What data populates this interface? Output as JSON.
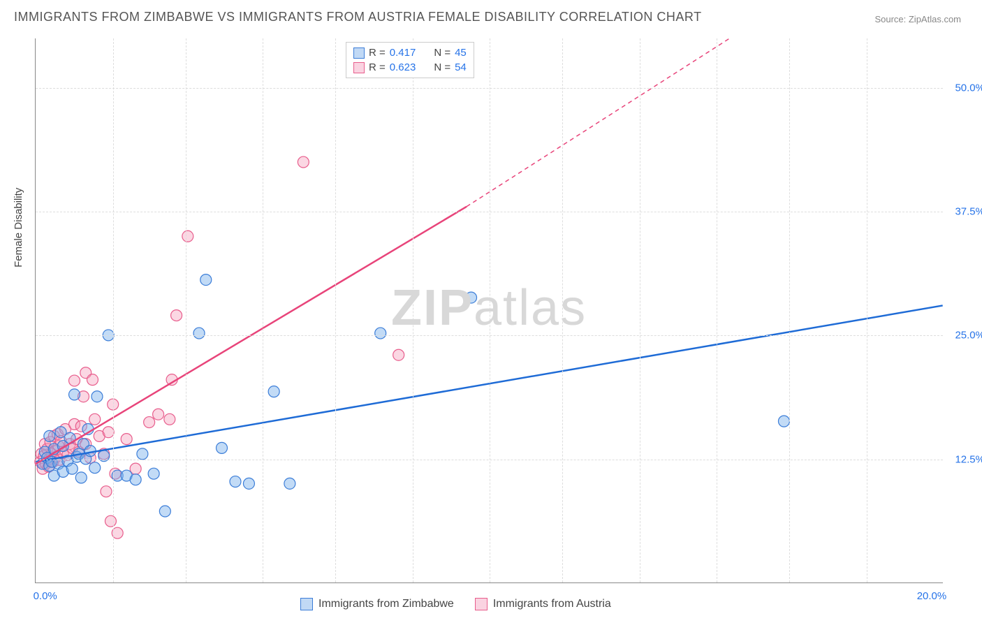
{
  "title": "IMMIGRANTS FROM ZIMBABWE VS IMMIGRANTS FROM AUSTRIA FEMALE DISABILITY CORRELATION CHART",
  "source": "Source: ZipAtlas.com",
  "ylabel": "Female Disability",
  "watermark_zip": "ZIP",
  "watermark_atlas": "atlas",
  "chart": {
    "type": "scatter",
    "xlim": [
      0,
      20
    ],
    "ylim": [
      0,
      55
    ],
    "x_ticks": [
      0,
      20
    ],
    "x_tick_labels": [
      "0.0%",
      "20.0%"
    ],
    "y_ticks": [
      12.5,
      25.0,
      37.5,
      50.0
    ],
    "y_tick_labels": [
      "12.5%",
      "25.0%",
      "37.5%",
      "50.0%"
    ],
    "x_minor_ticks": [
      1.7,
      3.3,
      5.0,
      6.6,
      8.3,
      10.0,
      11.6,
      13.3,
      15.0,
      16.6,
      18.3
    ],
    "background_color": "#ffffff",
    "grid_color": "#dddddd",
    "axis_color": "#888888",
    "tick_label_color": "#2673e8",
    "marker_radius": 8,
    "series": [
      {
        "name": "Immigrants from Zimbabwe",
        "R": "0.417",
        "N": "45",
        "color_fill": "rgba(120,175,235,0.45)",
        "color_stroke": "#3b7dd8",
        "trend_color": "#1e6bd6",
        "trend": {
          "x1": 0,
          "y1": 12.2,
          "x2": 20,
          "y2": 28.0
        },
        "points": [
          [
            0.15,
            12.0
          ],
          [
            0.2,
            13.2
          ],
          [
            0.25,
            12.6
          ],
          [
            0.3,
            11.8
          ],
          [
            0.3,
            14.8
          ],
          [
            0.35,
            12.2
          ],
          [
            0.4,
            10.8
          ],
          [
            0.4,
            13.5
          ],
          [
            0.5,
            12.0
          ],
          [
            0.55,
            15.2
          ],
          [
            0.6,
            11.2
          ],
          [
            0.6,
            13.8
          ],
          [
            0.7,
            12.3
          ],
          [
            0.75,
            14.6
          ],
          [
            0.8,
            11.5
          ],
          [
            0.85,
            19.0
          ],
          [
            0.9,
            12.7
          ],
          [
            0.95,
            13.0
          ],
          [
            1.0,
            10.6
          ],
          [
            1.05,
            14.0
          ],
          [
            1.1,
            12.5
          ],
          [
            1.15,
            15.5
          ],
          [
            1.2,
            13.3
          ],
          [
            1.3,
            11.6
          ],
          [
            1.35,
            18.8
          ],
          [
            1.5,
            12.8
          ],
          [
            1.6,
            25.0
          ],
          [
            1.8,
            10.8
          ],
          [
            2.0,
            10.8
          ],
          [
            2.2,
            10.4
          ],
          [
            2.35,
            13.0
          ],
          [
            2.6,
            11.0
          ],
          [
            2.85,
            7.2
          ],
          [
            3.6,
            25.2
          ],
          [
            3.75,
            30.6
          ],
          [
            4.1,
            13.6
          ],
          [
            4.4,
            10.2
          ],
          [
            4.7,
            10.0
          ],
          [
            5.25,
            19.3
          ],
          [
            5.6,
            10.0
          ],
          [
            7.6,
            25.2
          ],
          [
            9.6,
            28.8
          ],
          [
            16.5,
            16.3
          ]
        ]
      },
      {
        "name": "Immigrants from Austria",
        "R": "0.623",
        "N": "54",
        "color_fill": "rgba(245,155,185,0.4)",
        "color_stroke": "#e85d8c",
        "trend_color": "#e8447a",
        "trend": {
          "x1": 0,
          "y1": 12.0,
          "x2": 9.5,
          "y2": 38.0
        },
        "trend_dash": {
          "x1": 9.5,
          "y1": 38.0,
          "x2": 15.3,
          "y2": 55.0
        },
        "points": [
          [
            0.1,
            12.2
          ],
          [
            0.12,
            13.0
          ],
          [
            0.15,
            11.5
          ],
          [
            0.18,
            12.8
          ],
          [
            0.2,
            14.0
          ],
          [
            0.22,
            12.0
          ],
          [
            0.25,
            13.5
          ],
          [
            0.28,
            11.7
          ],
          [
            0.3,
            12.5
          ],
          [
            0.32,
            14.2
          ],
          [
            0.35,
            13.0
          ],
          [
            0.38,
            12.2
          ],
          [
            0.4,
            14.8
          ],
          [
            0.42,
            13.3
          ],
          [
            0.45,
            12.7
          ],
          [
            0.48,
            15.0
          ],
          [
            0.5,
            13.8
          ],
          [
            0.52,
            12.4
          ],
          [
            0.55,
            14.3
          ],
          [
            0.6,
            13.1
          ],
          [
            0.65,
            15.5
          ],
          [
            0.7,
            12.9
          ],
          [
            0.75,
            14.0
          ],
          [
            0.8,
            13.6
          ],
          [
            0.85,
            16.0
          ],
          [
            0.85,
            20.4
          ],
          [
            0.9,
            14.5
          ],
          [
            0.95,
            13.2
          ],
          [
            1.0,
            15.8
          ],
          [
            1.05,
            18.8
          ],
          [
            1.1,
            14.0
          ],
          [
            1.1,
            21.2
          ],
          [
            1.2,
            12.6
          ],
          [
            1.25,
            20.5
          ],
          [
            1.3,
            16.5
          ],
          [
            1.4,
            14.8
          ],
          [
            1.5,
            13.0
          ],
          [
            1.55,
            9.2
          ],
          [
            1.6,
            15.2
          ],
          [
            1.65,
            6.2
          ],
          [
            1.7,
            18.0
          ],
          [
            1.75,
            11.0
          ],
          [
            1.8,
            5.0
          ],
          [
            2.0,
            14.5
          ],
          [
            2.2,
            11.5
          ],
          [
            2.5,
            16.2
          ],
          [
            2.7,
            17.0
          ],
          [
            2.95,
            16.5
          ],
          [
            3.0,
            20.5
          ],
          [
            3.1,
            27.0
          ],
          [
            3.35,
            35.0
          ],
          [
            5.9,
            42.5
          ],
          [
            8.0,
            23.0
          ]
        ]
      }
    ]
  },
  "legend_top": {
    "rows": [
      {
        "sw": "blue",
        "R_label": "R =",
        "R": "0.417",
        "N_label": "N =",
        "N": "45"
      },
      {
        "sw": "pink",
        "R_label": "R =",
        "R": "0.623",
        "N_label": "N =",
        "N": "54"
      }
    ]
  },
  "legend_bottom": {
    "items": [
      {
        "sw": "blue",
        "label": "Immigrants from Zimbabwe"
      },
      {
        "sw": "pink",
        "label": "Immigrants from Austria"
      }
    ]
  }
}
